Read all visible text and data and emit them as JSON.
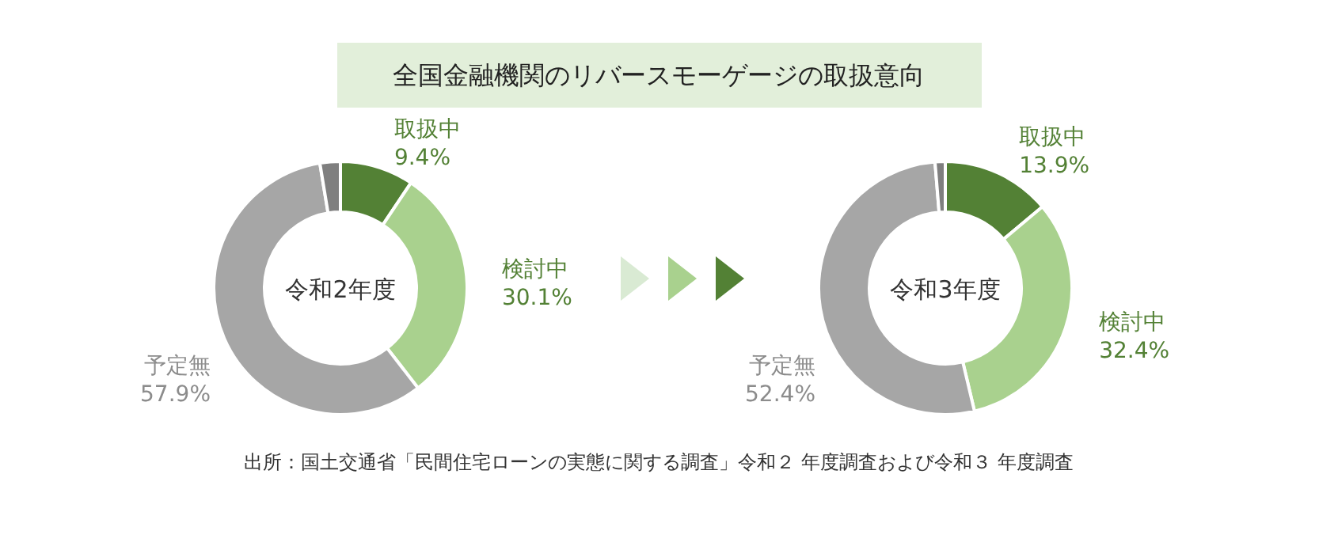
{
  "chart_data": [
    {
      "type": "donut",
      "title": "全国金融機関のリバースモーゲージの取扱意向",
      "annotations": [
        "令和2年度"
      ],
      "categories": [
        "取扱中",
        "検討中",
        "予定無",
        null
      ],
      "values": [
        9.4,
        30.1,
        57.9,
        2.6
      ],
      "value_labels": [
        "9.4%",
        "30.1%",
        "57.9%",
        null
      ],
      "colors": [
        "#538135",
        "#a9d18e",
        "#a6a6a6",
        "#7f7f7f"
      ]
    },
    {
      "type": "donut",
      "annotations": [
        "令和3年度",
        "出所：国土交通省「民間住宅ローンの実態に関する調査」令和２ 年度調査および令和３ 年度調査"
      ],
      "categories": [
        "取扱中",
        "検討中",
        "予定無",
        null
      ],
      "values": [
        13.9,
        32.4,
        52.4,
        1.3
      ],
      "value_labels": [
        "13.9%",
        "32.4%",
        "52.4%",
        null
      ],
      "colors": [
        "#538135",
        "#a9d18e",
        "#a6a6a6",
        "#7f7f7f"
      ]
    }
  ]
}
